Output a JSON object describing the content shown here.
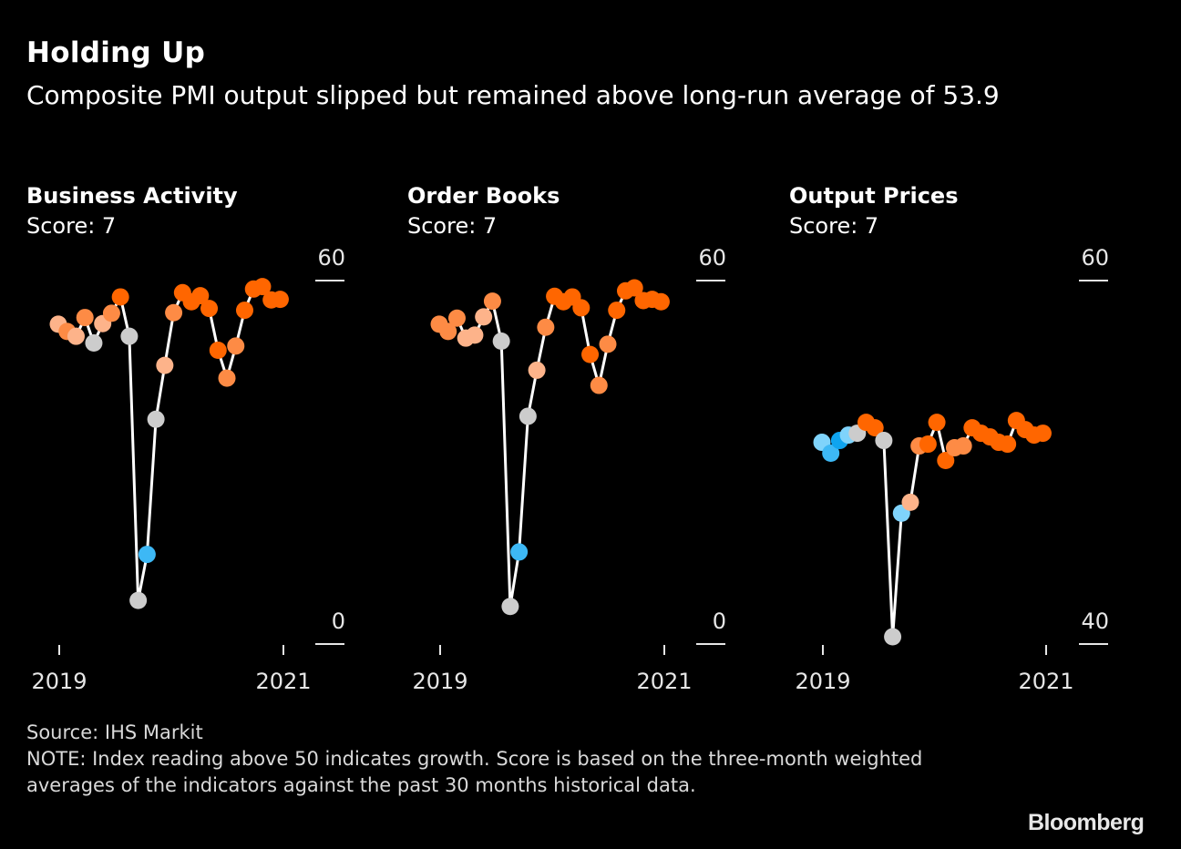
{
  "header": {
    "title": "Holding Up",
    "subtitle": "Composite PMI output slipped but remained above long-run average of 53.9"
  },
  "footer": {
    "source": "Source: IHS Markit",
    "note": "NOTE: Index reading above 50 indicates growth. Score is based on the three-month weighted averages of the indicators against the past 30 months historical data.",
    "logo": "Bloomberg"
  },
  "colors": {
    "background": "#000000",
    "line": "#ffffff",
    "strong_orange": "#ff6600",
    "mid_orange": "#fd8b45",
    "light_orange": "#fdb38a",
    "gray": "#cccccc",
    "light_blue": "#7fd3fb",
    "mid_blue": "#3db8f5",
    "dark_blue": "#0fa4ef"
  },
  "chart_data": [
    {
      "type": "line",
      "title": "Business Activity",
      "score_label": "Score: 7",
      "ylim": [
        0,
        60
      ],
      "yticks": [
        "60",
        "0"
      ],
      "xticks": [
        "2019",
        "2021"
      ],
      "x": [
        "2019-01",
        "2019-02",
        "2019-03",
        "2019-04",
        "2019-05",
        "2019-06",
        "2019-07",
        "2019-08",
        "2019-09",
        "2019-10",
        "2019-11",
        "2019-12",
        "2020-01",
        "2020-02",
        "2020-03",
        "2020-04",
        "2020-05",
        "2020-06",
        "2020-07",
        "2020-08",
        "2020-09",
        "2020-10",
        "2020-11",
        "2020-12",
        "2021-01",
        "2021-02"
      ],
      "values": [
        52.8,
        51.6,
        50.8,
        53.9,
        49.7,
        52.9,
        54.6,
        57.3,
        50.8,
        7.2,
        14.8,
        37.1,
        46.0,
        54.7,
        58.0,
        56.5,
        57.5,
        55.4,
        48.5,
        43.9,
        49.2,
        55.1,
        58.6,
        59.0,
        56.8,
        56.9
      ],
      "color_classes": [
        "light_orange",
        "mid_orange",
        "light_orange",
        "mid_orange",
        "gray",
        "light_orange",
        "mid_orange",
        "strong_orange",
        "gray",
        "gray",
        "mid_blue",
        "gray",
        "light_orange",
        "mid_orange",
        "strong_orange",
        "strong_orange",
        "strong_orange",
        "strong_orange",
        "strong_orange",
        "mid_orange",
        "mid_orange",
        "strong_orange",
        "strong_orange",
        "strong_orange",
        "strong_orange",
        "strong_orange"
      ]
    },
    {
      "type": "line",
      "title": "Order Books",
      "score_label": "Score: 7",
      "ylim": [
        0,
        60
      ],
      "yticks": [
        "60",
        "0"
      ],
      "xticks": [
        "2019",
        "2021"
      ],
      "x": [
        "2019-01",
        "2019-02",
        "2019-03",
        "2019-04",
        "2019-05",
        "2019-06",
        "2019-07",
        "2019-08",
        "2019-09",
        "2019-10",
        "2019-11",
        "2019-12",
        "2020-01",
        "2020-02",
        "2020-03",
        "2020-04",
        "2020-05",
        "2020-06",
        "2020-07",
        "2020-08",
        "2020-09",
        "2020-10",
        "2020-11",
        "2020-12",
        "2021-01",
        "2021-02"
      ],
      "values": [
        52.8,
        51.6,
        53.8,
        50.5,
        51.0,
        54.0,
        56.6,
        50.0,
        6.2,
        15.2,
        37.6,
        45.2,
        52.3,
        57.4,
        56.5,
        57.3,
        55.5,
        47.8,
        42.7,
        49.5,
        55.1,
        58.3,
        58.8,
        56.7,
        56.9,
        56.5
      ],
      "color_classes": [
        "mid_orange",
        "mid_orange",
        "mid_orange",
        "light_orange",
        "light_orange",
        "light_orange",
        "mid_orange",
        "gray",
        "gray",
        "mid_blue",
        "gray",
        "light_orange",
        "mid_orange",
        "strong_orange",
        "strong_orange",
        "strong_orange",
        "strong_orange",
        "strong_orange",
        "mid_orange",
        "mid_orange",
        "strong_orange",
        "strong_orange",
        "strong_orange",
        "strong_orange",
        "strong_orange",
        "strong_orange"
      ]
    },
    {
      "type": "line",
      "title": "Output Prices",
      "score_label": "Score: 7",
      "ylim": [
        40,
        60
      ],
      "yticks": [
        "60",
        "40"
      ],
      "xticks": [
        "2019",
        "2021"
      ],
      "x": [
        "2019-01",
        "2019-02",
        "2019-03",
        "2019-04",
        "2019-05",
        "2019-06",
        "2019-07",
        "2019-08",
        "2019-09",
        "2019-10",
        "2019-11",
        "2019-12",
        "2020-01",
        "2020-02",
        "2020-03",
        "2020-04",
        "2020-05",
        "2020-06",
        "2020-07",
        "2020-08",
        "2020-09",
        "2020-10",
        "2020-11",
        "2020-12",
        "2021-01",
        "2021-02"
      ],
      "values": [
        51.1,
        50.5,
        51.2,
        51.5,
        51.6,
        52.2,
        51.9,
        51.2,
        40.4,
        47.2,
        47.8,
        50.9,
        51.0,
        52.2,
        50.1,
        50.8,
        50.9,
        51.9,
        51.6,
        51.4,
        51.1,
        51.0,
        52.3,
        51.8,
        51.5,
        51.6
      ],
      "color_classes": [
        "light_blue",
        "mid_blue",
        "dark_blue",
        "light_blue",
        "gray",
        "strong_orange",
        "strong_orange",
        "gray",
        "gray",
        "light_blue",
        "light_orange",
        "mid_orange",
        "strong_orange",
        "strong_orange",
        "strong_orange",
        "mid_orange",
        "mid_orange",
        "strong_orange",
        "strong_orange",
        "strong_orange",
        "strong_orange",
        "strong_orange",
        "strong_orange",
        "strong_orange",
        "strong_orange",
        "strong_orange"
      ]
    }
  ]
}
